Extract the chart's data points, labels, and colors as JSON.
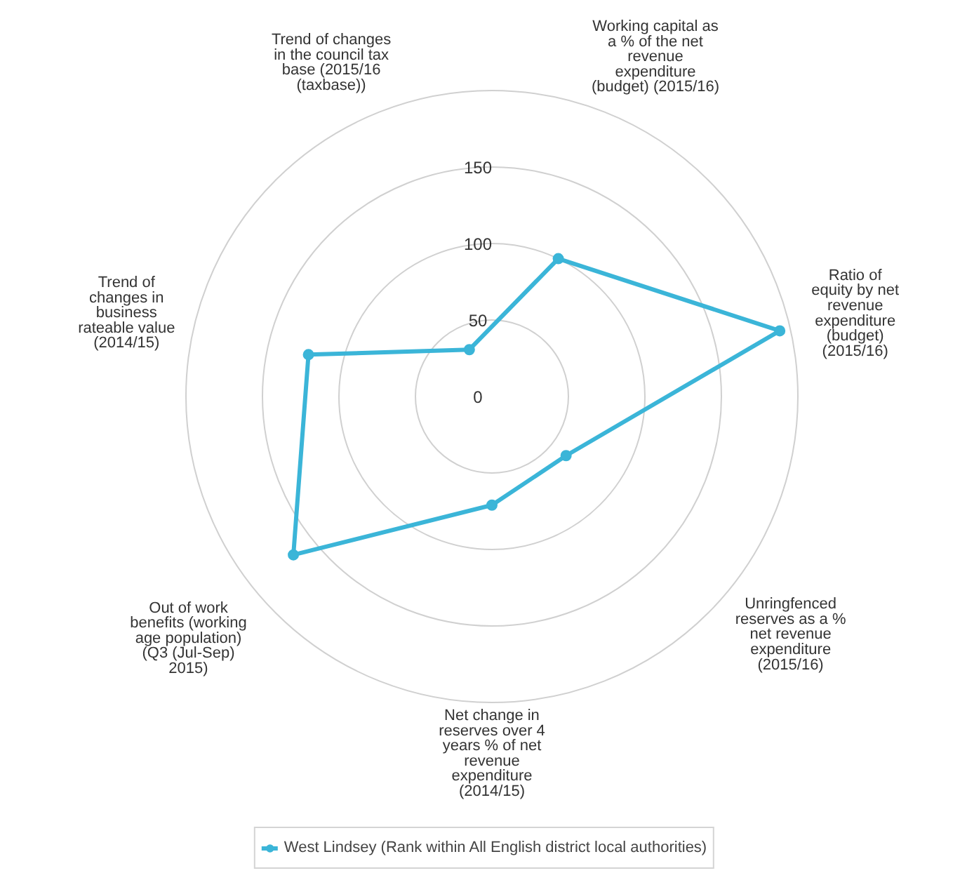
{
  "chart_data": {
    "type": "radar",
    "categories": [
      "Working capital as a % of the net revenue expenditure (budget) (2015/16)",
      "Ratio of equity by net revenue expenditure (budget) (2015/16)",
      "Unringfenced reserves as a % net revenue expenditure (2015/16)",
      "Net change in reserves over 4 years % of net revenue expenditure (2014/15)",
      "Out of work benefits (working age population) (Q3 (Jul-Sep) 2015)",
      "Trend of changes in business rateable value (2014/15)",
      "Trend of changes in the council tax base (2015/16 (taxbase))"
    ],
    "series": [
      {
        "name": "West Lindsey (Rank within All English district local authorities)",
        "color": "#3bb5d8",
        "values": [
          100,
          193,
          62,
          71,
          166,
          123,
          34
        ]
      }
    ],
    "ylim": [
      0,
      200
    ],
    "yticks": [
      0,
      50,
      100,
      150
    ],
    "grid": true,
    "legend": "bottom",
    "marker": "circle",
    "line_style": "solid"
  }
}
